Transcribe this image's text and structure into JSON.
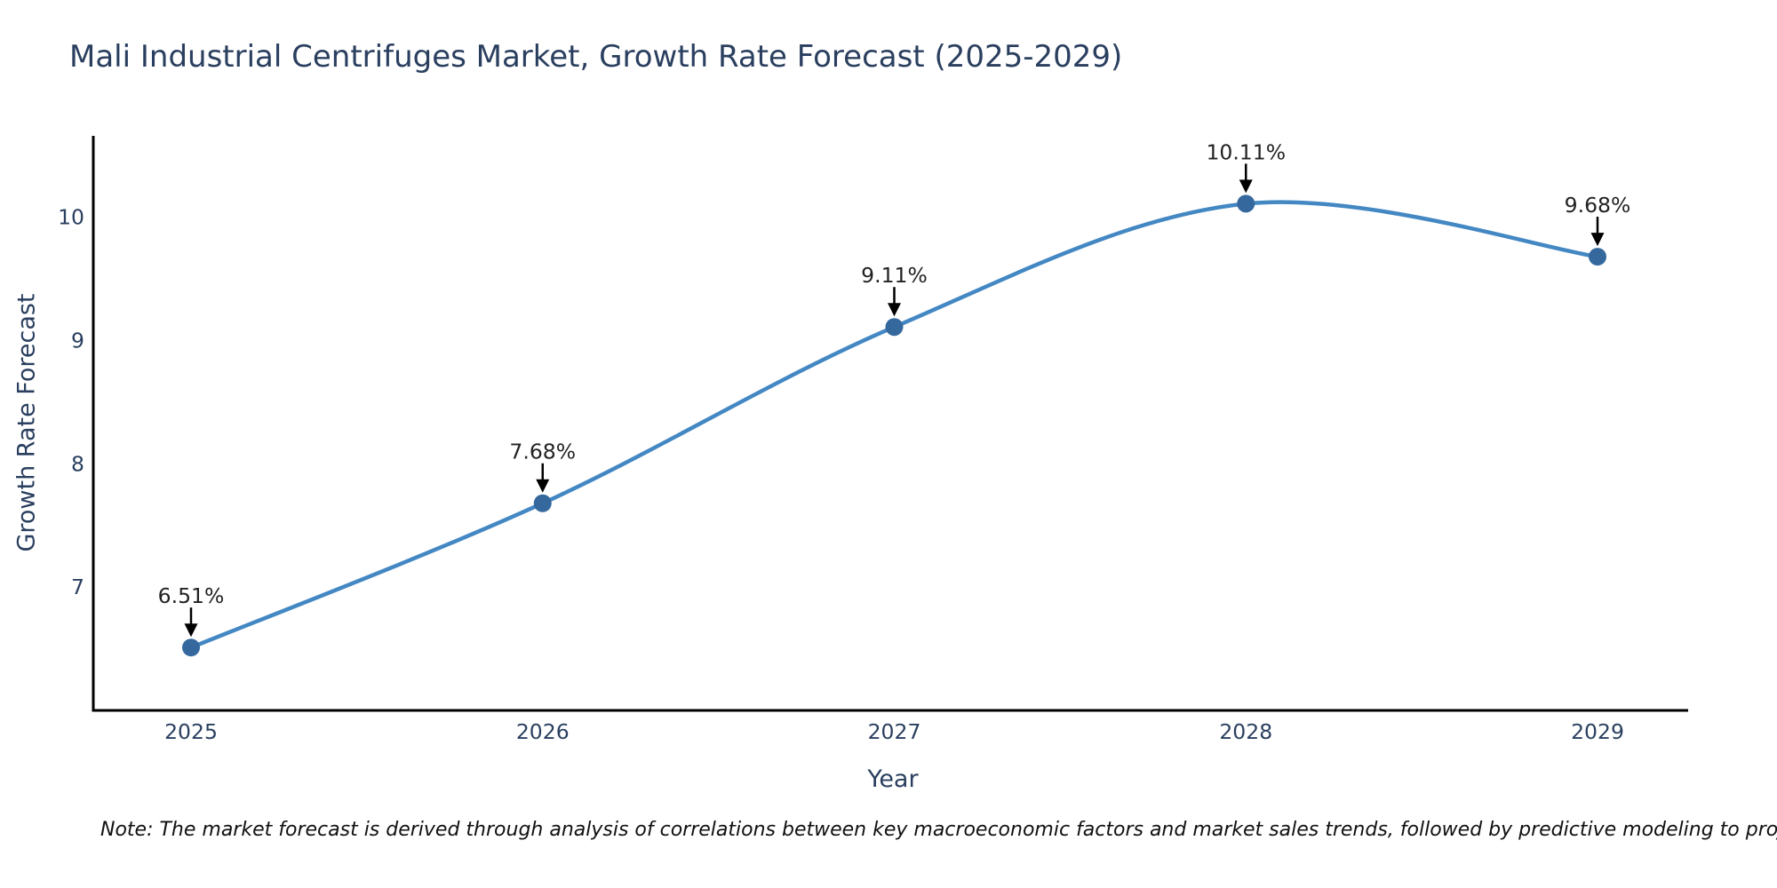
{
  "page": {
    "title": "Mali Industrial Centrifuges Market, Growth Rate Forecast (2025-2029)",
    "footnote": "Note: The market forecast is derived through analysis of correlations between key macroeconomic factors and market sales trends, followed by predictive modeling to project future sales"
  },
  "chart_data": {
    "type": "line",
    "title": "Mali Industrial Centrifuges Market, Growth Rate Forecast (2025-2029)",
    "xlabel": "Year",
    "ylabel": "Growth Rate Forecast",
    "categories": [
      "2025",
      "2026",
      "2027",
      "2028",
      "2029"
    ],
    "values": [
      6.51,
      7.68,
      9.11,
      10.11,
      9.68
    ],
    "point_labels": [
      "6.51%",
      "7.68%",
      "9.11%",
      "10.11%",
      "9.68%"
    ],
    "yticks": [
      7,
      8,
      9,
      10
    ],
    "ylim": [
      6.0,
      10.66
    ],
    "line_shape": "spline",
    "grid": false,
    "legend_position": "none",
    "colors": {
      "line": "#4387c3",
      "marker": "#35699e",
      "axis_line": "#000000",
      "axis_text": "#2a3f5f",
      "annotation_text": "#222222",
      "annotation_arrow": "#000000",
      "title_text": "#2a3f5f",
      "background": "#ffffff"
    }
  }
}
